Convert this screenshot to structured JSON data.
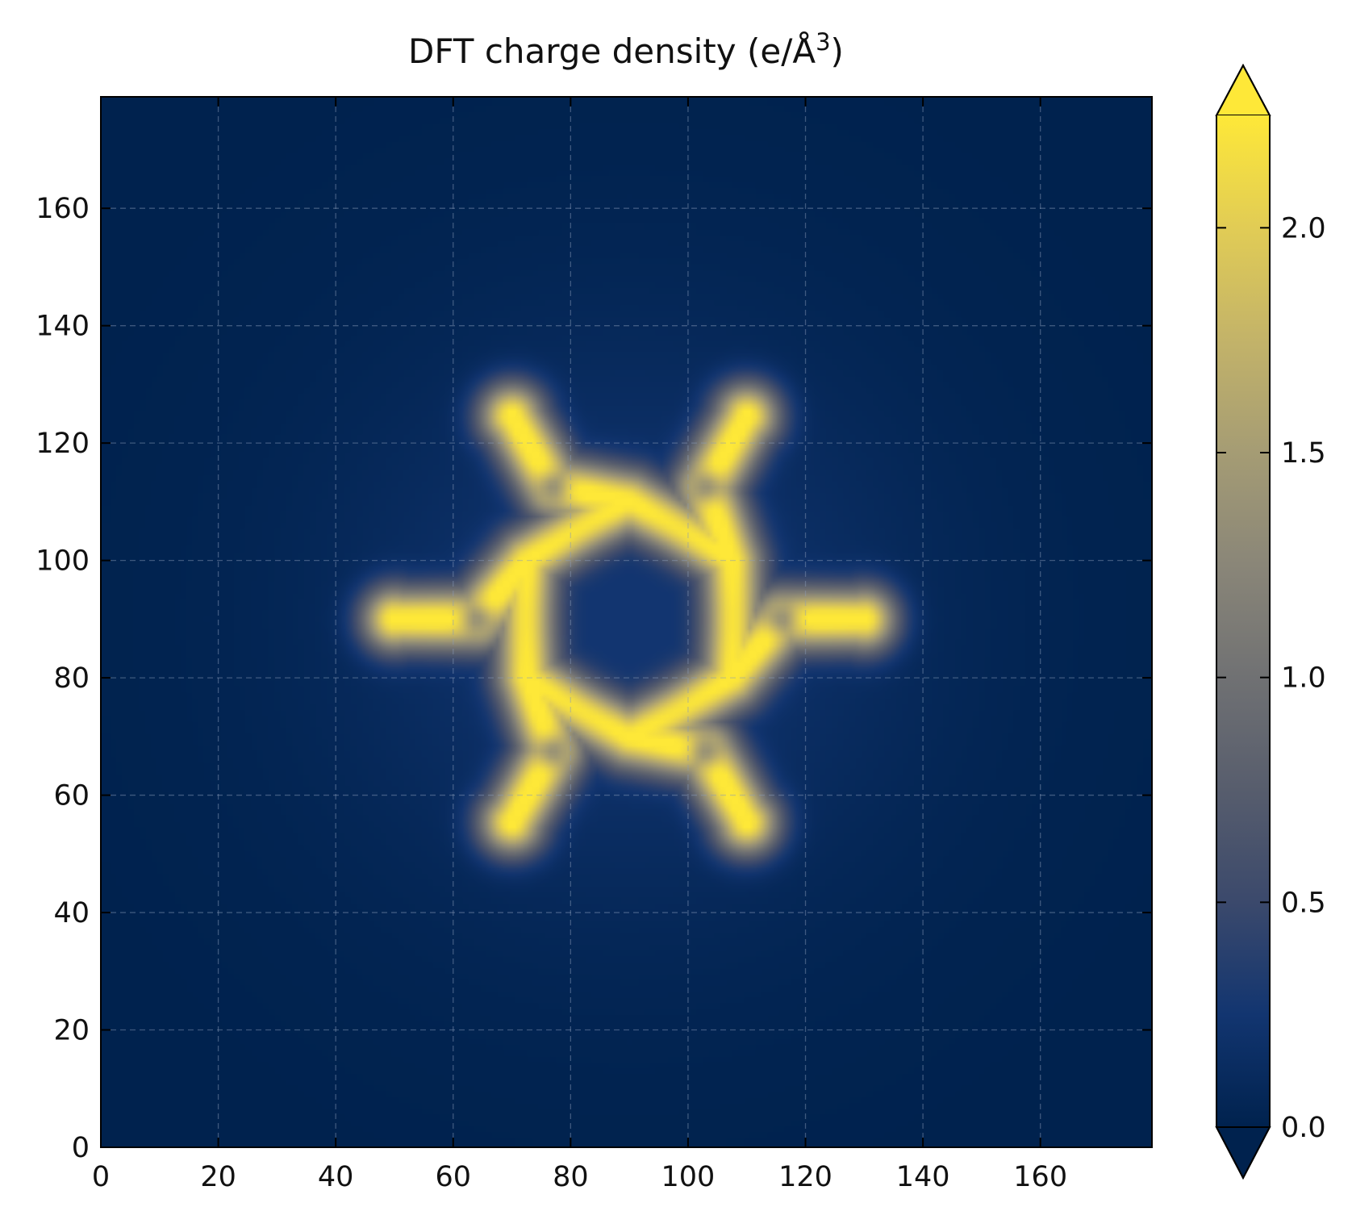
{
  "chart_data": {
    "type": "heatmap",
    "title": "DFT charge density (e/Å",
    "title_superscript": "3",
    "title_suffix": ")",
    "xlabel": "",
    "ylabel": "",
    "xlim": [
      0,
      179
    ],
    "ylim": [
      0,
      179
    ],
    "xticks": [
      0,
      20,
      40,
      60,
      80,
      100,
      120,
      140,
      160
    ],
    "yticks": [
      0,
      20,
      40,
      60,
      80,
      100,
      120,
      140,
      160
    ],
    "grid": true,
    "colormap": "cividis",
    "colormap_stops": [
      "#00224e",
      "#123570",
      "#3b496c",
      "#575d6d",
      "#707173",
      "#8a8678",
      "#a59c74",
      "#c3b369",
      "#e1cc55",
      "#fee838"
    ],
    "colorbar": {
      "min": 0.0,
      "max": 2.25,
      "extend": "both",
      "ticks": [
        0.0,
        0.5,
        1.0,
        1.5,
        2.0
      ],
      "tick_labels": [
        "0.0",
        "0.5",
        "1.0",
        "1.5",
        "2.0"
      ]
    },
    "structure": {
      "center": [
        90,
        90
      ],
      "ring_radius": 20,
      "inner_atom_radius": 26,
      "outer_atom_radius": 40,
      "atom_angles_deg": [
        0,
        60,
        120,
        180,
        240,
        300
      ],
      "peak_density": 2.2,
      "central_hole_density": 0.0,
      "background_density": 0.0
    }
  }
}
